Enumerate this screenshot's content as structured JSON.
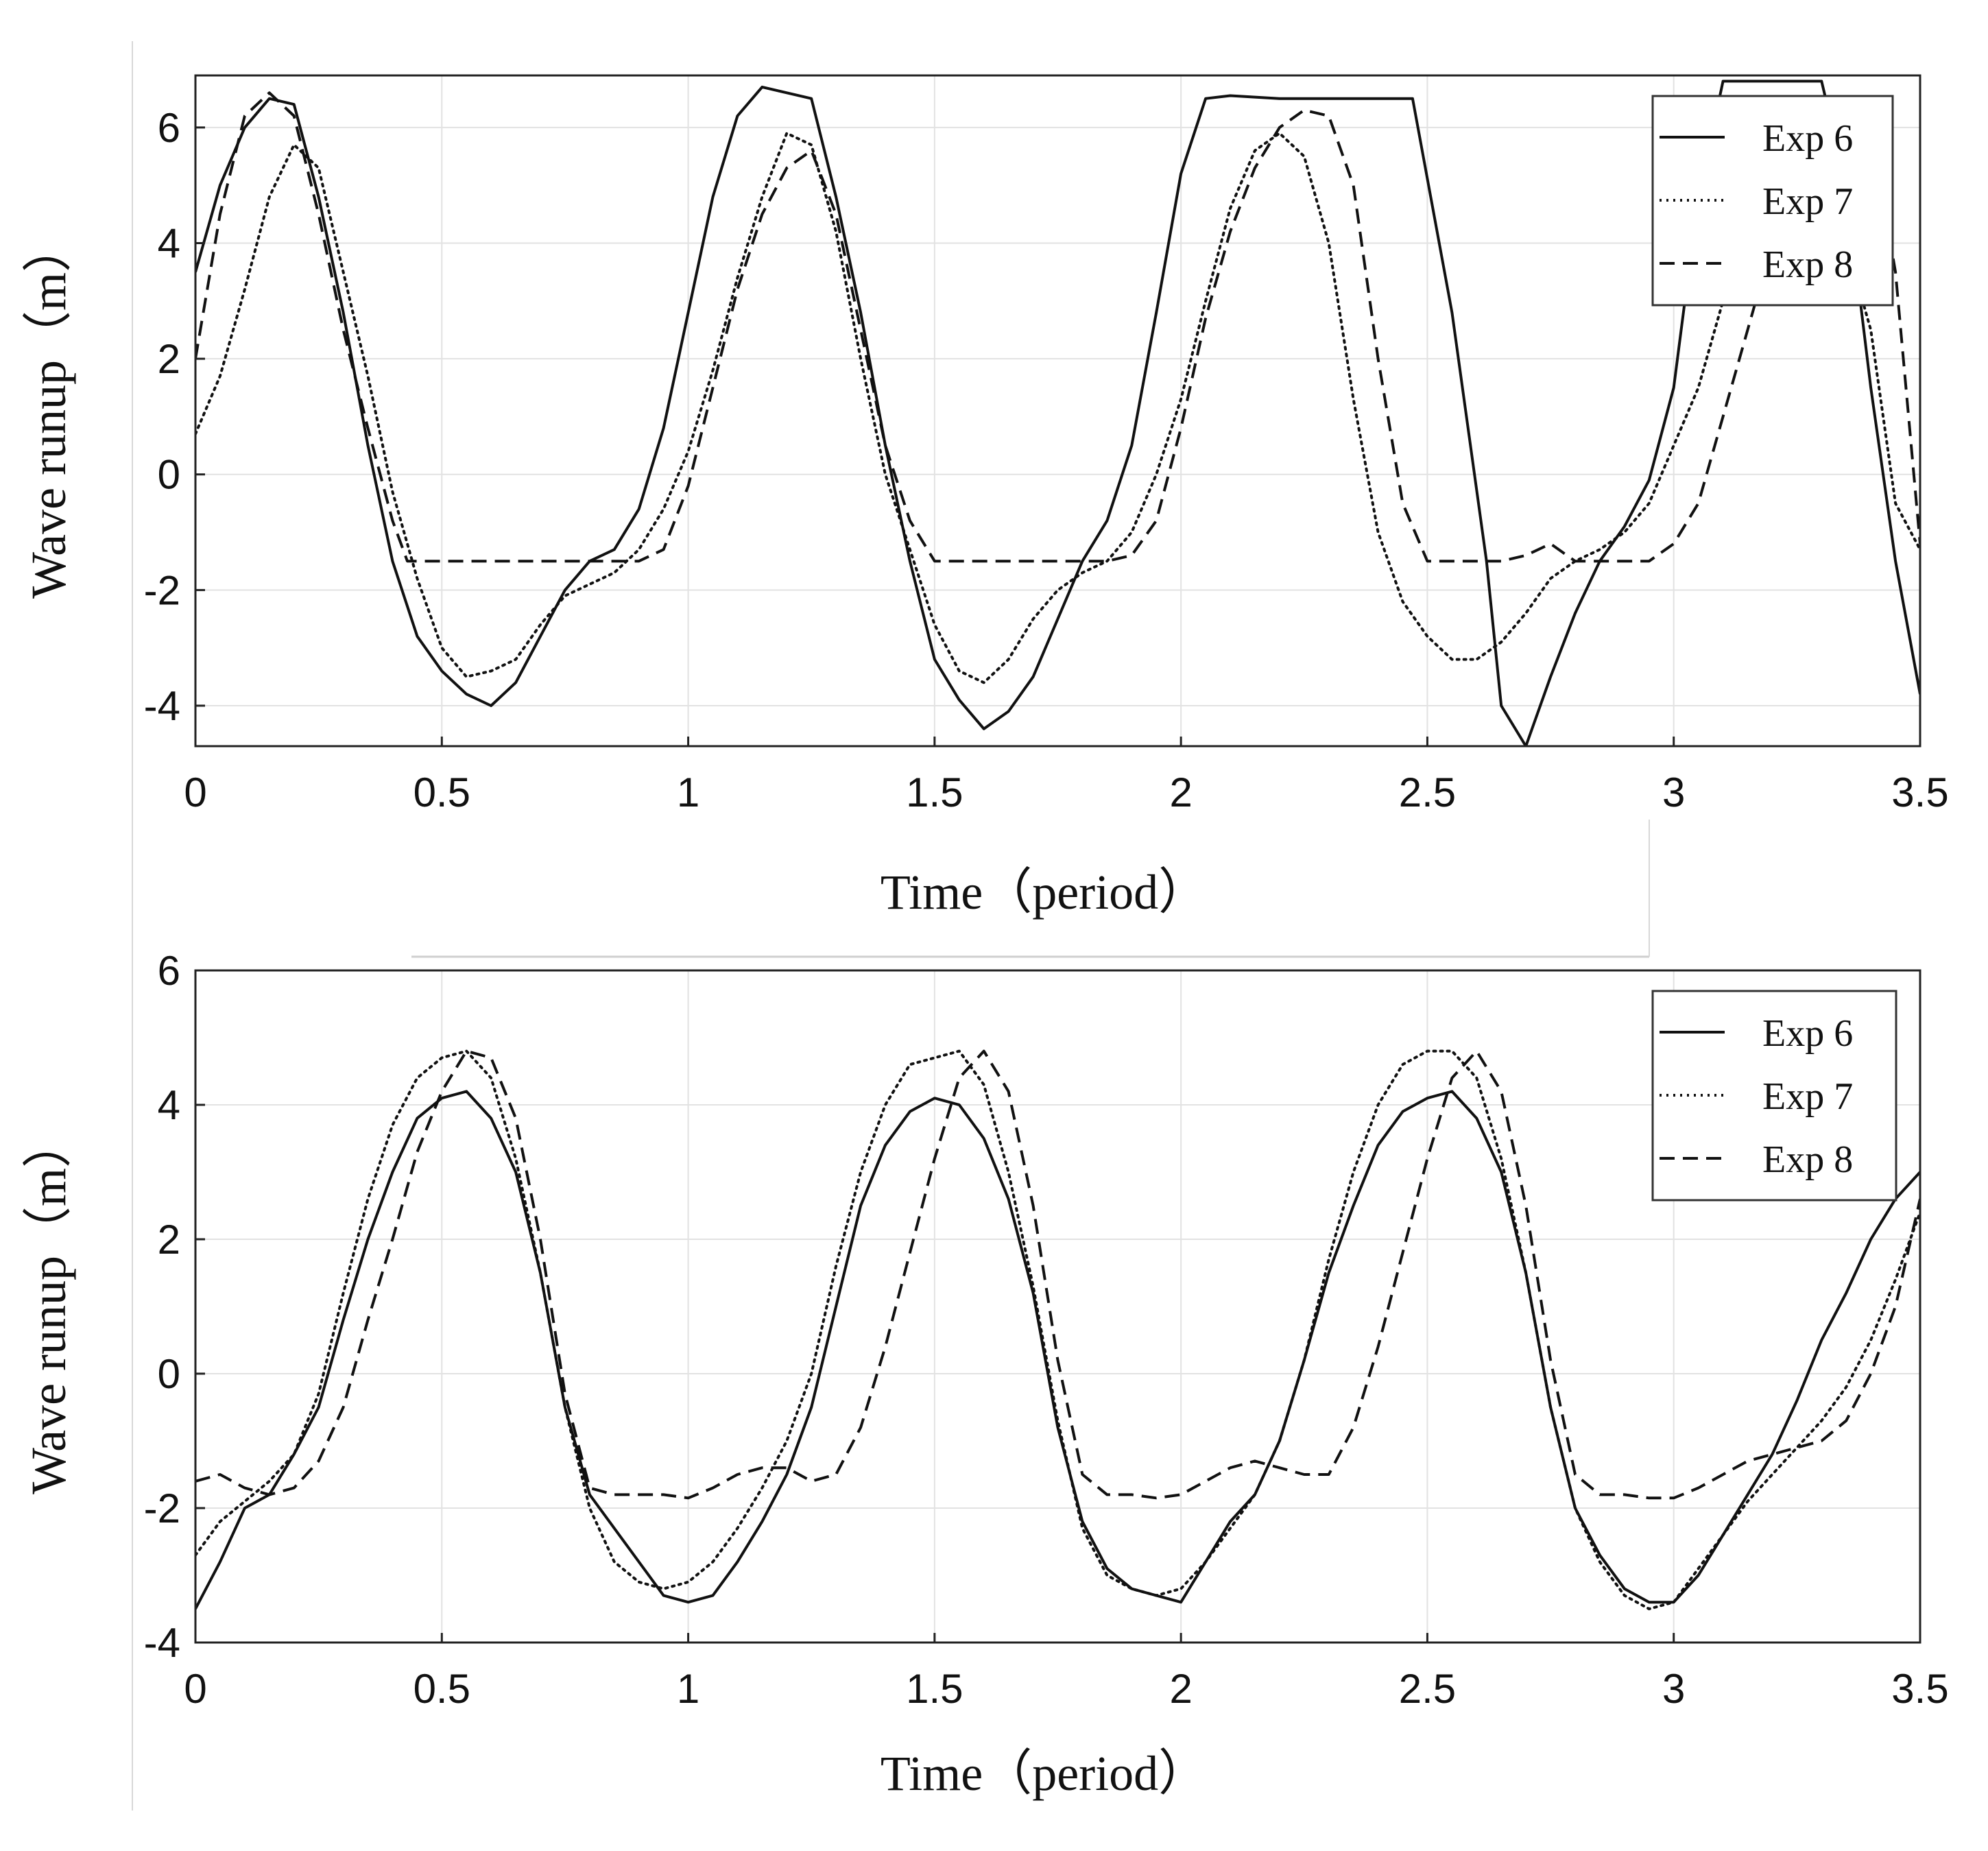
{
  "chart_data": [
    {
      "type": "line",
      "xlabel": "Time（period）",
      "ylabel": "Wave runup（m）",
      "xlim": [
        0,
        3.5
      ],
      "ylim": [
        -4.7,
        6.9
      ],
      "xticks": [
        "0",
        "0.5",
        "1",
        "1.5",
        "2",
        "2.5",
        "3",
        "3.5"
      ],
      "yticks": [
        "-4",
        "-2",
        "0",
        "2",
        "4",
        "6"
      ],
      "grid": true,
      "legend": "top-right",
      "series": [
        {
          "name": "Exp 6",
          "style": "solid",
          "x": [
            0,
            0.05,
            0.1,
            0.15,
            0.2,
            0.25,
            0.3,
            0.35,
            0.4,
            0.45,
            0.5,
            0.55,
            0.6,
            0.65,
            0.7,
            0.75,
            0.8,
            0.85,
            0.9,
            0.95,
            1.0,
            1.05,
            1.1,
            1.15,
            1.2,
            1.25,
            1.3,
            1.35,
            1.4,
            1.45,
            1.5,
            1.55,
            1.6,
            1.65,
            1.7,
            1.75,
            1.8,
            1.85,
            1.9,
            1.95,
            2.0,
            2.05,
            2.1,
            2.2,
            2.3,
            2.4,
            2.47,
            2.55,
            2.62,
            2.65,
            2.7,
            2.75,
            2.8,
            2.85,
            2.9,
            2.95,
            3.0,
            3.05,
            3.1,
            3.2,
            3.3,
            3.35,
            3.4,
            3.45,
            3.5
          ],
          "y": [
            3.5,
            5.0,
            6.0,
            6.5,
            6.4,
            4.8,
            2.8,
            0.5,
            -1.5,
            -2.8,
            -3.4,
            -3.8,
            -4.0,
            -3.6,
            -2.8,
            -2.0,
            -1.5,
            -1.3,
            -0.6,
            0.8,
            2.8,
            4.8,
            6.2,
            6.7,
            6.6,
            6.5,
            4.8,
            2.8,
            0.5,
            -1.5,
            -3.2,
            -3.9,
            -4.4,
            -4.1,
            -3.5,
            -2.5,
            -1.5,
            -0.8,
            0.5,
            2.8,
            5.2,
            6.5,
            6.55,
            6.5,
            6.5,
            6.5,
            6.5,
            2.8,
            -1.5,
            -4.0,
            -4.7,
            -3.5,
            -2.4,
            -1.5,
            -0.9,
            -0.1,
            1.5,
            4.8,
            6.8,
            6.8,
            6.8,
            5.0,
            1.5,
            -1.5,
            -3.8
          ]
        },
        {
          "name": "Exp 7",
          "style": "dotted",
          "x": [
            0,
            0.05,
            0.1,
            0.15,
            0.2,
            0.25,
            0.3,
            0.35,
            0.4,
            0.45,
            0.5,
            0.55,
            0.6,
            0.65,
            0.7,
            0.75,
            0.8,
            0.85,
            0.9,
            0.95,
            1.0,
            1.05,
            1.1,
            1.15,
            1.2,
            1.25,
            1.3,
            1.35,
            1.4,
            1.45,
            1.5,
            1.55,
            1.6,
            1.65,
            1.7,
            1.75,
            1.8,
            1.85,
            1.9,
            1.95,
            2.0,
            2.05,
            2.1,
            2.15,
            2.2,
            2.25,
            2.3,
            2.35,
            2.4,
            2.45,
            2.5,
            2.55,
            2.6,
            2.65,
            2.7,
            2.75,
            2.8,
            2.85,
            2.9,
            2.95,
            3.0,
            3.05,
            3.1,
            3.15,
            3.2,
            3.3,
            3.4,
            3.45,
            3.5
          ],
          "y": [
            0.7,
            1.7,
            3.2,
            4.8,
            5.7,
            5.3,
            3.5,
            1.7,
            -0.3,
            -1.8,
            -3.0,
            -3.5,
            -3.4,
            -3.2,
            -2.6,
            -2.1,
            -1.9,
            -1.7,
            -1.3,
            -0.6,
            0.4,
            1.8,
            3.4,
            4.8,
            5.9,
            5.7,
            4.2,
            2.0,
            0.0,
            -1.3,
            -2.6,
            -3.4,
            -3.6,
            -3.2,
            -2.5,
            -2.0,
            -1.7,
            -1.5,
            -1.0,
            0.0,
            1.3,
            3.0,
            4.6,
            5.6,
            5.9,
            5.5,
            4.0,
            1.3,
            -1.0,
            -2.2,
            -2.8,
            -3.2,
            -3.2,
            -2.9,
            -2.4,
            -1.8,
            -1.5,
            -1.3,
            -1.0,
            -0.5,
            0.5,
            1.5,
            3.0,
            4.5,
            5.5,
            5.5,
            2.5,
            -0.5,
            -1.3
          ]
        },
        {
          "name": "Exp 8",
          "style": "dashed",
          "x": [
            0,
            0.05,
            0.1,
            0.15,
            0.2,
            0.25,
            0.3,
            0.35,
            0.4,
            0.43,
            0.5,
            0.6,
            0.7,
            0.8,
            0.9,
            0.95,
            1.0,
            1.05,
            1.1,
            1.15,
            1.2,
            1.25,
            1.3,
            1.35,
            1.4,
            1.45,
            1.5,
            1.6,
            1.7,
            1.8,
            1.85,
            1.9,
            1.95,
            2.0,
            2.05,
            2.1,
            2.15,
            2.2,
            2.25,
            2.3,
            2.35,
            2.4,
            2.45,
            2.5,
            2.6,
            2.65,
            2.7,
            2.75,
            2.8,
            2.9,
            2.95,
            3.0,
            3.05,
            3.1,
            3.15,
            3.2,
            3.3,
            3.4,
            3.45,
            3.5
          ],
          "y": [
            2.0,
            4.5,
            6.2,
            6.6,
            6.2,
            4.5,
            2.5,
            0.8,
            -0.8,
            -1.5,
            -1.5,
            -1.5,
            -1.5,
            -1.5,
            -1.5,
            -1.3,
            -0.2,
            1.5,
            3.2,
            4.5,
            5.3,
            5.6,
            4.5,
            2.5,
            0.5,
            -0.8,
            -1.5,
            -1.5,
            -1.5,
            -1.5,
            -1.5,
            -1.4,
            -0.8,
            0.8,
            2.7,
            4.2,
            5.3,
            6.0,
            6.3,
            6.2,
            5.0,
            2.0,
            -0.5,
            -1.5,
            -1.5,
            -1.5,
            -1.4,
            -1.2,
            -1.5,
            -1.5,
            -1.5,
            -1.2,
            -0.5,
            1.0,
            2.5,
            4.0,
            6.5,
            6.0,
            3.5,
            -1.2
          ]
        }
      ]
    },
    {
      "type": "line",
      "xlabel": "Time（period）",
      "ylabel": "Wave runup（m）",
      "xlim": [
        0,
        3.5
      ],
      "ylim": [
        -4,
        6
      ],
      "xticks": [
        "0",
        "0.5",
        "1",
        "1.5",
        "2",
        "2.5",
        "3",
        "3.5"
      ],
      "yticks": [
        "-4",
        "-2",
        "0",
        "2",
        "4",
        "6"
      ],
      "grid": true,
      "legend": "top-right",
      "series": [
        {
          "name": "Exp 6",
          "style": "solid",
          "x": [
            0,
            0.05,
            0.1,
            0.15,
            0.2,
            0.25,
            0.3,
            0.35,
            0.4,
            0.45,
            0.5,
            0.55,
            0.6,
            0.65,
            0.7,
            0.75,
            0.8,
            0.85,
            0.9,
            0.95,
            1.0,
            1.05,
            1.1,
            1.15,
            1.2,
            1.25,
            1.3,
            1.35,
            1.4,
            1.45,
            1.5,
            1.55,
            1.6,
            1.65,
            1.7,
            1.75,
            1.8,
            1.85,
            1.9,
            1.95,
            2.0,
            2.05,
            2.1,
            2.15,
            2.2,
            2.25,
            2.3,
            2.35,
            2.4,
            2.45,
            2.5,
            2.55,
            2.6,
            2.65,
            2.7,
            2.75,
            2.8,
            2.85,
            2.9,
            2.95,
            3.0,
            3.05,
            3.1,
            3.15,
            3.2,
            3.25,
            3.3,
            3.35,
            3.4,
            3.45,
            3.5
          ],
          "y": [
            -3.5,
            -2.8,
            -2.0,
            -1.8,
            -1.2,
            -0.5,
            0.8,
            2.0,
            3.0,
            3.8,
            4.1,
            4.2,
            3.8,
            3.0,
            1.5,
            -0.5,
            -1.8,
            -2.3,
            -2.8,
            -3.3,
            -3.4,
            -3.3,
            -2.8,
            -2.2,
            -1.5,
            -0.5,
            1.0,
            2.5,
            3.4,
            3.9,
            4.1,
            4.0,
            3.5,
            2.6,
            1.2,
            -0.8,
            -2.2,
            -2.9,
            -3.2,
            -3.3,
            -3.4,
            -2.8,
            -2.2,
            -1.8,
            -1.0,
            0.2,
            1.5,
            2.5,
            3.4,
            3.9,
            4.1,
            4.2,
            3.8,
            3.0,
            1.5,
            -0.5,
            -2.0,
            -2.7,
            -3.2,
            -3.4,
            -3.4,
            -3.0,
            -2.4,
            -1.8,
            -1.2,
            -0.4,
            0.5,
            1.2,
            2.0,
            2.6,
            3.0
          ]
        },
        {
          "name": "Exp 7",
          "style": "dotted",
          "x": [
            0,
            0.05,
            0.1,
            0.15,
            0.2,
            0.25,
            0.3,
            0.35,
            0.4,
            0.45,
            0.5,
            0.55,
            0.6,
            0.65,
            0.7,
            0.75,
            0.8,
            0.85,
            0.9,
            0.95,
            1.0,
            1.05,
            1.1,
            1.15,
            1.2,
            1.25,
            1.3,
            1.35,
            1.4,
            1.45,
            1.5,
            1.55,
            1.6,
            1.65,
            1.7,
            1.75,
            1.8,
            1.85,
            1.9,
            1.95,
            2.0,
            2.05,
            2.1,
            2.15,
            2.2,
            2.25,
            2.3,
            2.35,
            2.4,
            2.45,
            2.5,
            2.55,
            2.6,
            2.65,
            2.7,
            2.75,
            2.8,
            2.85,
            2.9,
            2.95,
            3.0,
            3.05,
            3.1,
            3.15,
            3.2,
            3.25,
            3.3,
            3.35,
            3.4,
            3.45,
            3.5
          ],
          "y": [
            -2.7,
            -2.2,
            -1.9,
            -1.6,
            -1.2,
            -0.3,
            1.2,
            2.6,
            3.7,
            4.4,
            4.7,
            4.8,
            4.4,
            3.2,
            1.5,
            -0.5,
            -2.0,
            -2.8,
            -3.1,
            -3.2,
            -3.1,
            -2.8,
            -2.3,
            -1.7,
            -1.0,
            0.0,
            1.6,
            3.0,
            4.0,
            4.6,
            4.7,
            4.8,
            4.3,
            3.0,
            1.3,
            -0.7,
            -2.3,
            -3.0,
            -3.2,
            -3.3,
            -3.2,
            -2.8,
            -2.3,
            -1.8,
            -1.0,
            0.2,
            1.7,
            3.0,
            4.0,
            4.6,
            4.8,
            4.8,
            4.4,
            3.2,
            1.5,
            -0.5,
            -2.0,
            -2.8,
            -3.3,
            -3.5,
            -3.4,
            -2.9,
            -2.4,
            -1.9,
            -1.5,
            -1.1,
            -0.7,
            -0.2,
            0.5,
            1.4,
            2.4
          ]
        },
        {
          "name": "Exp 8",
          "style": "dashed",
          "x": [
            0,
            0.05,
            0.1,
            0.15,
            0.2,
            0.25,
            0.3,
            0.35,
            0.4,
            0.45,
            0.5,
            0.55,
            0.6,
            0.65,
            0.7,
            0.75,
            0.8,
            0.85,
            0.9,
            0.95,
            1.0,
            1.05,
            1.1,
            1.15,
            1.2,
            1.25,
            1.3,
            1.35,
            1.4,
            1.45,
            1.5,
            1.55,
            1.6,
            1.65,
            1.7,
            1.75,
            1.8,
            1.85,
            1.9,
            1.95,
            2.0,
            2.05,
            2.1,
            2.15,
            2.2,
            2.25,
            2.3,
            2.35,
            2.4,
            2.45,
            2.5,
            2.55,
            2.6,
            2.65,
            2.7,
            2.75,
            2.8,
            2.85,
            2.9,
            2.95,
            3.0,
            3.05,
            3.1,
            3.15,
            3.2,
            3.25,
            3.3,
            3.35,
            3.4,
            3.45,
            3.5
          ],
          "y": [
            -1.6,
            -1.5,
            -1.7,
            -1.8,
            -1.7,
            -1.3,
            -0.5,
            0.8,
            2.0,
            3.3,
            4.2,
            4.8,
            4.7,
            3.8,
            2.0,
            -0.3,
            -1.7,
            -1.8,
            -1.8,
            -1.8,
            -1.85,
            -1.7,
            -1.5,
            -1.4,
            -1.4,
            -1.6,
            -1.5,
            -0.8,
            0.4,
            1.8,
            3.2,
            4.4,
            4.8,
            4.2,
            2.5,
            0.2,
            -1.5,
            -1.8,
            -1.8,
            -1.85,
            -1.8,
            -1.6,
            -1.4,
            -1.3,
            -1.4,
            -1.5,
            -1.5,
            -0.8,
            0.4,
            1.8,
            3.2,
            4.4,
            4.8,
            4.2,
            2.5,
            0.2,
            -1.5,
            -1.8,
            -1.8,
            -1.85,
            -1.85,
            -1.7,
            -1.5,
            -1.3,
            -1.2,
            -1.1,
            -1.0,
            -0.7,
            0.0,
            1.0,
            2.6
          ]
        }
      ]
    }
  ]
}
